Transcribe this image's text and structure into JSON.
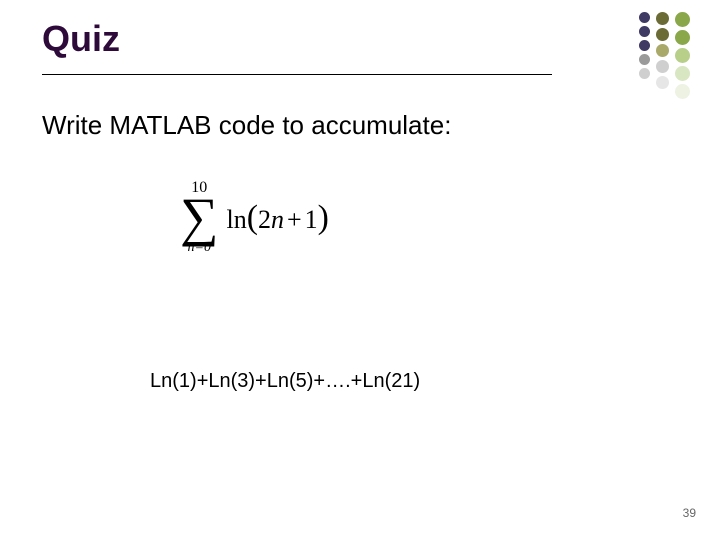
{
  "slide": {
    "title": "Quiz",
    "title_color": "#2d0a3a",
    "title_fontsize": 36,
    "prompt": "Write MATLAB code to accumulate:",
    "prompt_fontsize": 26,
    "prompt_color": "#000000",
    "expansion": "Ln(1)+Ln(3)+Ln(5)+….+Ln(21)",
    "expansion_fontsize": 20,
    "page_number": "39",
    "page_number_fontsize": 12,
    "page_number_color": "#666666",
    "background_color": "#ffffff"
  },
  "formula": {
    "upper_limit": "10",
    "upper_fontsize": 16,
    "sigma_fontsize": 54,
    "lower_limit": "n=0",
    "lower_fontsize": 14,
    "expr_prefix": "ln",
    "expr_open": "(",
    "expr_body_num": "2",
    "expr_body_var": "n",
    "expr_body_op": "+",
    "expr_body_const": "1",
    "expr_close": ")",
    "expr_fontsize": 26,
    "color": "#000000"
  },
  "decoration": {
    "cols": [
      {
        "dots": [
          {
            "size": 11,
            "color": "#3e3a63"
          },
          {
            "size": 11,
            "color": "#3e3a63"
          },
          {
            "size": 11,
            "color": "#3e3a63"
          },
          {
            "size": 11,
            "color": "#9a9a9a"
          },
          {
            "size": 11,
            "color": "#cfcfcf"
          }
        ],
        "gap": 3
      },
      {
        "dots": [
          {
            "size": 13,
            "color": "#6b6b36"
          },
          {
            "size": 13,
            "color": "#6b6b36"
          },
          {
            "size": 13,
            "color": "#a9a96a"
          },
          {
            "size": 13,
            "color": "#cfcfcf"
          },
          {
            "size": 13,
            "color": "#e6e6e6"
          }
        ],
        "gap": 3
      },
      {
        "dots": [
          {
            "size": 15,
            "color": "#8aa84a"
          },
          {
            "size": 15,
            "color": "#8aa84a"
          },
          {
            "size": 15,
            "color": "#b8cf8a"
          },
          {
            "size": 15,
            "color": "#d9e6c2"
          },
          {
            "size": 15,
            "color": "#eef2e3"
          }
        ],
        "gap": 3
      }
    ]
  }
}
